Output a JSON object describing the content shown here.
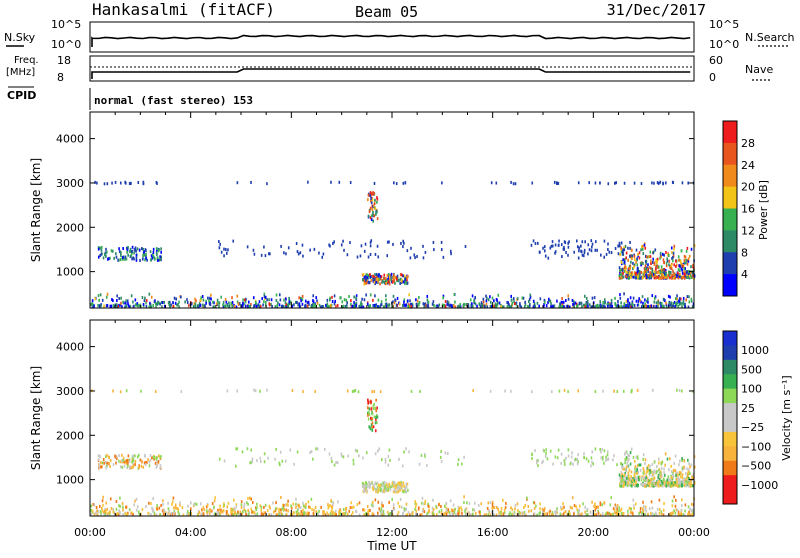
{
  "header": {
    "station": "Hankasalmi (fitACF)",
    "beam": "Beam 05",
    "date": "31/Dec/2017"
  },
  "params": {
    "nsky_label": "N.Sky",
    "nsky_ticks": [
      "10^5",
      "10^0"
    ],
    "nsearch_label": "N.Search",
    "nsearch_ticks": [
      "10^5",
      "10^0"
    ],
    "freq_label_1": "Freq.",
    "freq_label_2": "[MHz]",
    "freq_ticks": [
      "18",
      "8"
    ],
    "nave_label": "Nave",
    "nave_ticks": [
      "60",
      "0"
    ],
    "cpid_label": "CPID",
    "cpid_value": "normal (fast stereo) 153"
  },
  "colors": {
    "power": [
      "#0000ff",
      "#1f3fae",
      "#2d8a66",
      "#36b050",
      "#f2c418",
      "#f08a1a",
      "#e8561e",
      "#ee1c1c"
    ],
    "velocity": [
      "#ee1c1c",
      "#ee1c1c",
      "#f07a18",
      "#f8b43a",
      "#f7c43a",
      "#c8c8c8",
      "#c8c8c8",
      "#8ed858",
      "#36b050",
      "#2d8a66",
      "#1f3fae",
      "#1a2fcf"
    ],
    "nsky_line": "#000000"
  },
  "chart_data": [
    {
      "type": "heatmap",
      "title": "",
      "xlabel": "",
      "ylabel": "Slant Range [km]",
      "xlim": [
        0,
        24
      ],
      "ylim": [
        180,
        4600
      ],
      "x_ticks": [
        "00:00",
        "04:00",
        "08:00",
        "12:00",
        "16:00",
        "20:00",
        "00:00"
      ],
      "y_ticks": [
        "1000",
        "2000",
        "3000",
        "4000"
      ],
      "colorbar": {
        "label": "Power [dB]",
        "range": [
          0,
          32
        ],
        "ticks": [
          "4",
          "8",
          "12",
          "16",
          "20",
          "24",
          "28"
        ]
      },
      "regions": [
        {
          "name": "ground scatter band",
          "t": [
            0,
            24
          ],
          "range_km": [
            180,
            500
          ]
        },
        {
          "name": "far range line",
          "t": [
            0,
            24
          ],
          "range_km": [
            2950,
            3050
          ]
        },
        {
          "name": "early echo",
          "t": [
            0.3,
            2.8
          ],
          "range_km": [
            1250,
            1550
          ]
        },
        {
          "name": "midday patch",
          "t": [
            10.8,
            12.6
          ],
          "range_km": [
            700,
            950
          ]
        },
        {
          "name": "spike",
          "t": [
            11.0,
            11.4
          ],
          "range_km": [
            2100,
            2800
          ]
        },
        {
          "name": "evening echo",
          "t": [
            21.0,
            24
          ],
          "range_km": [
            850,
            1650
          ]
        }
      ]
    },
    {
      "type": "heatmap",
      "title": "",
      "xlabel": "Time UT",
      "ylabel": "Slant Range [km]",
      "xlim": [
        0,
        24
      ],
      "ylim": [
        180,
        4600
      ],
      "x_ticks": [
        "00:00",
        "04:00",
        "08:00",
        "12:00",
        "16:00",
        "20:00",
        "00:00"
      ],
      "y_ticks": [
        "1000",
        "2000",
        "3000",
        "4000"
      ],
      "colorbar": {
        "label": "Velocity [m s⁻¹]",
        "ticks": [
          "1000",
          "500",
          "100",
          "25",
          "−25",
          "−100",
          "−500",
          "−1000"
        ]
      },
      "regions": [
        {
          "name": "ground scatter band",
          "t": [
            0,
            24
          ],
          "range_km": [
            180,
            600
          ]
        },
        {
          "name": "far range line",
          "t": [
            0,
            24
          ],
          "range_km": [
            2950,
            3050
          ]
        },
        {
          "name": "early echo",
          "t": [
            0.3,
            2.8
          ],
          "range_km": [
            1250,
            1550
          ]
        },
        {
          "name": "midday patch",
          "t": [
            10.8,
            12.6
          ],
          "range_km": [
            700,
            950
          ]
        },
        {
          "name": "spike",
          "t": [
            11.0,
            11.4
          ],
          "range_km": [
            2100,
            2800
          ]
        },
        {
          "name": "evening echo",
          "t": [
            21.0,
            24
          ],
          "range_km": [
            850,
            1650
          ]
        }
      ]
    }
  ]
}
